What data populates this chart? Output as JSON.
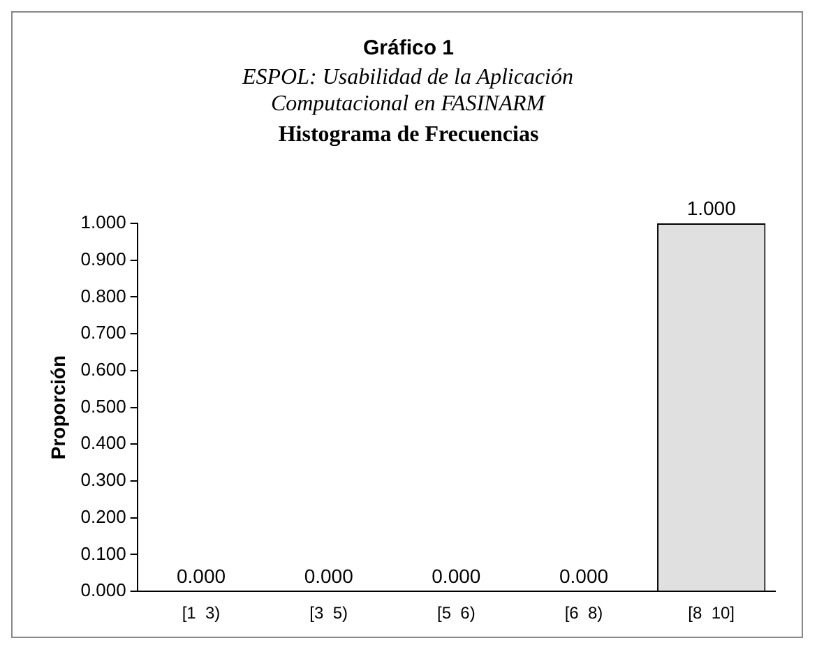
{
  "chart_data": {
    "type": "bar",
    "title": "Gráfico 1",
    "subtitle": "ESPOL:  Usabilidad de la Aplicación Computacional en FASINARM",
    "annotations": [
      "Histograma de Frecuencias"
    ],
    "ylabel": "Proporción",
    "categories": [
      "[1  3)",
      "[3  5)",
      "[5  6)",
      "[6  8)",
      "[8  10]"
    ],
    "values": [
      0,
      0,
      0,
      0,
      1
    ],
    "value_labels": [
      "0.000",
      "0.000",
      "0.000",
      "0.000",
      "1.000"
    ],
    "color": "#e0e0e0",
    "ylim": [
      0,
      1
    ],
    "yticks": [
      {
        "value": 0,
        "label": "0.000"
      },
      {
        "value": 0.1,
        "label": "0.100"
      },
      {
        "value": 0.2,
        "label": "0.200"
      },
      {
        "value": 0.3,
        "label": "0.300"
      },
      {
        "value": 0.4,
        "label": "0.400"
      },
      {
        "value": 0.5,
        "label": "0.500"
      },
      {
        "value": 0.6,
        "label": "0.600"
      },
      {
        "value": 0.7,
        "label": "0.700"
      },
      {
        "value": 0.8,
        "label": "0.800"
      },
      {
        "value": 0.9,
        "label": "0.900"
      },
      {
        "value": 1,
        "label": "1.000"
      }
    ],
    "grid": false,
    "legend": false
  }
}
